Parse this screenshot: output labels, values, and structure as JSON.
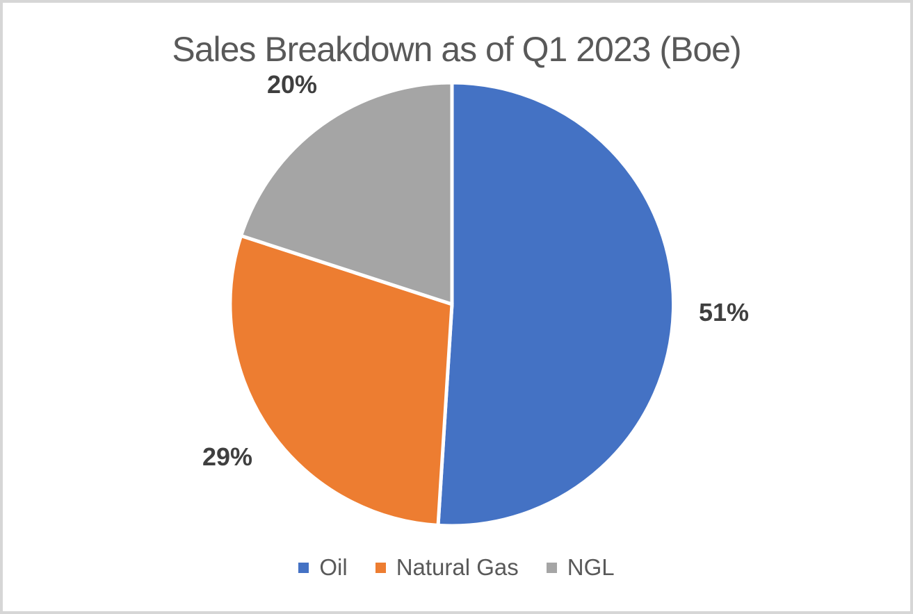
{
  "page": {
    "background": "#ffffff",
    "frame_border_color": "#d6d6d6"
  },
  "chart_data": {
    "type": "pie",
    "title": "Sales Breakdown as of Q1 2023 (Boe)",
    "categories": [
      "Oil",
      "Natural Gas",
      "NGL"
    ],
    "values": [
      51,
      29,
      20
    ],
    "data_labels": [
      "51%",
      "29%",
      "20%"
    ],
    "colors": [
      "#4472C4",
      "#ED7D31",
      "#A5A5A5"
    ],
    "start_angle_deg": 0,
    "direction": "clockwise",
    "legend_position": "bottom",
    "slice_border_color": "#ffffff",
    "title_color": "#595959",
    "data_label_color": "#3f3f3f",
    "legend_text_color": "#595959"
  }
}
